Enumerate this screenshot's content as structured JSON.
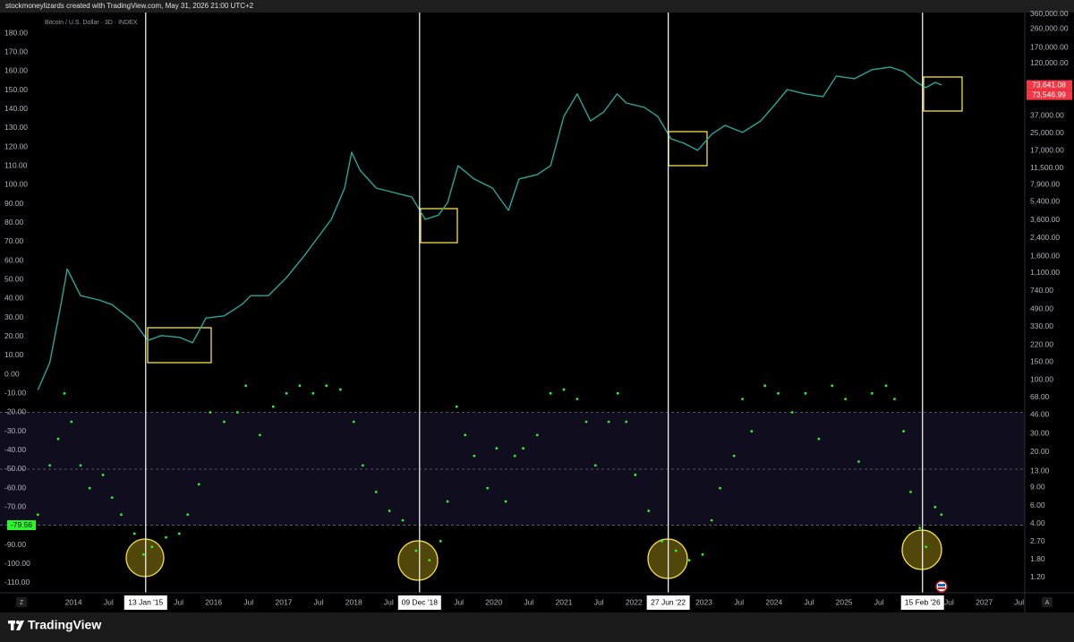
{
  "header": {
    "attribution": "stockmoneylizards created with TradingView.com, May 31, 2026 21:00 UTC+2"
  },
  "footer": {
    "brand": "TradingView"
  },
  "ui": {
    "scale_left": "Z",
    "scale_right": "A"
  },
  "chart_data": {
    "type": "line",
    "title": "Bitcoin / U.S. Dollar · 3D · INDEX",
    "xlim": [
      2012.95,
      2027.58
    ],
    "xticks": [
      2014,
      {
        "value": 2014.5,
        "label": "Jul"
      },
      {
        "value": 2015.5,
        "label": "Jul"
      },
      2016,
      {
        "value": 2016.5,
        "label": "Jul"
      },
      2017,
      {
        "value": 2017.5,
        "label": "Jul"
      },
      2018,
      {
        "value": 2018.5,
        "label": "Jul"
      },
      {
        "value": 2019.5,
        "label": "Jul"
      },
      2020,
      {
        "value": 2020.5,
        "label": "Jul"
      },
      2021,
      {
        "value": 2021.5,
        "label": "Jul"
      },
      2022,
      2023,
      {
        "value": 2023.5,
        "label": "Jul"
      },
      2024,
      {
        "value": 2024.5,
        "label": "Jul"
      },
      2025,
      {
        "value": 2025.5,
        "label": "Jul"
      },
      {
        "value": 2026.5,
        "label": "Jul"
      },
      2027,
      {
        "value": 2027.5,
        "label": "Jul"
      }
    ],
    "markers": [
      {
        "value": 2015.03,
        "label": "13 Jan '15"
      },
      {
        "value": 2018.94,
        "label": "09 Dec '18"
      },
      {
        "value": 2022.49,
        "label": "27 Jun '22"
      },
      {
        "value": 2026.12,
        "label": "15 Feb '26"
      }
    ],
    "ylim": [
      -115.2,
      192.8
    ],
    "yticks": [
      {
        "value": 180,
        "label": "180.00"
      },
      {
        "value": 170,
        "label": "170.00"
      },
      {
        "value": 160,
        "label": "160.00"
      },
      {
        "value": 150,
        "label": "150.00"
      },
      {
        "value": 140,
        "label": "140.00"
      },
      {
        "value": 130,
        "label": "130.00"
      },
      {
        "value": 120,
        "label": "120.00"
      },
      {
        "value": 110,
        "label": "110.00"
      },
      {
        "value": 100,
        "label": "100.00"
      },
      {
        "value": 90,
        "label": "90.00"
      },
      {
        "value": 80,
        "label": "80.00"
      },
      {
        "value": 70,
        "label": "70.00"
      },
      {
        "value": 60,
        "label": "60.00"
      },
      {
        "value": 50,
        "label": "50.00"
      },
      {
        "value": 40,
        "label": "40.00"
      },
      {
        "value": 30,
        "label": "30.00"
      },
      {
        "value": 20,
        "label": "20.00"
      },
      {
        "value": 10,
        "label": "10.00"
      },
      {
        "value": 0,
        "label": "0.00"
      },
      {
        "value": -10,
        "label": "-10.00"
      },
      {
        "value": -20,
        "label": "-20.00"
      },
      {
        "value": -30,
        "label": "-30.00"
      },
      {
        "value": -40,
        "label": "-40.00"
      },
      {
        "value": -50,
        "label": "-50.00"
      },
      {
        "value": -60,
        "label": "-60.00"
      },
      {
        "value": -70,
        "label": "-70.00"
      },
      {
        "value": -90,
        "label": "-90.00"
      },
      {
        "value": -100,
        "label": "-100.00"
      },
      {
        "value": -110,
        "label": "-110.00"
      }
    ],
    "y2lim": [
      0.853,
      405000
    ],
    "y2log": true,
    "y2ticks": [
      {
        "value": 360000,
        "label": "360,000.00"
      },
      {
        "value": 260000,
        "label": "260,000.00"
      },
      {
        "value": 170000,
        "label": "170,000.00"
      },
      {
        "value": 120000,
        "label": "120,000.00"
      },
      {
        "value": 37000,
        "label": "37,000.00"
      },
      {
        "value": 25000,
        "label": "25,000.00"
      },
      {
        "value": 17000,
        "label": "17,000.00"
      },
      {
        "value": 11500,
        "label": "11,500.00"
      },
      {
        "value": 7900,
        "label": "7,900.00"
      },
      {
        "value": 5400,
        "label": "5,400.00"
      },
      {
        "value": 3600,
        "label": "3,600.00"
      },
      {
        "value": 2400,
        "label": "2,400.00"
      },
      {
        "value": 1600,
        "label": "1,600.00"
      },
      {
        "value": 1100,
        "label": "1,100.00"
      },
      {
        "value": 740,
        "label": "740.00"
      },
      {
        "value": 490,
        "label": "490.00"
      },
      {
        "value": 330,
        "label": "330.00"
      },
      {
        "value": 220,
        "label": "220.00"
      },
      {
        "value": 150,
        "label": "150.00"
      },
      {
        "value": 100,
        "label": "100.00"
      },
      {
        "value": 68,
        "label": "68.00"
      },
      {
        "value": 46,
        "label": "46.00"
      },
      {
        "value": 30,
        "label": "30.00"
      },
      {
        "value": 20,
        "label": "20.00"
      },
      {
        "value": 13,
        "label": "13.00"
      },
      {
        "value": 9,
        "label": "9.00"
      },
      {
        "value": 6,
        "label": "6.00"
      },
      {
        "value": 4,
        "label": "4.00"
      },
      {
        "value": 2.7,
        "label": "2.70"
      },
      {
        "value": 1.8,
        "label": "1.80"
      },
      {
        "value": 1.2,
        "label": "1.20"
      }
    ],
    "levels": [
      -20,
      -50,
      {
        "value": -79.56,
        "label": "-79.56"
      }
    ],
    "band_color": "#100d1f",
    "series": [
      {
        "type": "line",
        "axis": "y2",
        "color": "#26a69a",
        "x": [
          2013.49,
          2013.66,
          2013.82,
          2013.91,
          2014.1,
          2014.36,
          2014.55,
          2014.87,
          2015.06,
          2015.25,
          2015.51,
          2015.7,
          2015.89,
          2016.15,
          2016.4,
          2016.53,
          2016.78,
          2017.04,
          2017.3,
          2017.49,
          2017.68,
          2017.87,
          2017.97,
          2018.09,
          2018.32,
          2018.57,
          2018.83,
          2019.02,
          2019.21,
          2019.34,
          2019.49,
          2019.72,
          2019.98,
          2020.21,
          2020.36,
          2020.62,
          2020.81,
          2021.0,
          2021.19,
          2021.38,
          2021.57,
          2021.76,
          2021.89,
          2022.15,
          2022.34,
          2022.53,
          2022.72,
          2022.91,
          2023.11,
          2023.3,
          2023.55,
          2023.81,
          2024.0,
          2024.19,
          2024.45,
          2024.7,
          2024.89,
          2025.15,
          2025.4,
          2025.66,
          2025.85,
          2026.04,
          2026.17,
          2026.3,
          2026.39
        ],
        "values": [
          80,
          147,
          540,
          1200,
          660,
          600,
          540,
          362,
          242,
          270,
          260,
          230,
          400,
          420,
          540,
          660,
          660,
          990,
          1630,
          2440,
          3640,
          7350,
          16400,
          10960,
          7350,
          6650,
          6000,
          3640,
          4000,
          5300,
          12100,
          9000,
          7350,
          4450,
          9000,
          9940,
          12100,
          36500,
          60400,
          33000,
          40400,
          60400,
          49400,
          44700,
          36500,
          22100,
          20000,
          17100,
          24500,
          29900,
          25500,
          33000,
          46500,
          66700,
          60400,
          56900,
          90200,
          84900,
          104000,
          110000,
          99800,
          78300,
          69500,
          78300,
          74000
        ],
        "last_values": [
          {
            "value": 73641.08,
            "label": "73,641.08"
          },
          {
            "value": 73546.99,
            "label": "73,546.99"
          }
        ],
        "label_color": "#f23645"
      },
      {
        "type": "scatter",
        "color": "#2bf52b",
        "x": [
          2013.49,
          2013.66,
          2013.78,
          2013.87,
          2013.97,
          2014.1,
          2014.23,
          2014.42,
          2014.55,
          2014.68,
          2014.87,
          2015.0,
          2015.12,
          2015.32,
          2015.51,
          2015.63,
          2015.79,
          2015.95,
          2016.15,
          2016.34,
          2016.46,
          2016.66,
          2016.85,
          2017.04,
          2017.23,
          2017.42,
          2017.61,
          2017.81,
          2018.0,
          2018.13,
          2018.32,
          2018.51,
          2018.7,
          2018.89,
          2019.08,
          2019.24,
          2019.34,
          2019.47,
          2019.59,
          2019.72,
          2019.91,
          2020.04,
          2020.17,
          2020.3,
          2020.42,
          2020.62,
          2020.81,
          2021.0,
          2021.19,
          2021.32,
          2021.45,
          2021.64,
          2021.77,
          2021.89,
          2022.02,
          2022.21,
          2022.4,
          2022.6,
          2022.79,
          2022.98,
          2023.11,
          2023.23,
          2023.43,
          2023.55,
          2023.68,
          2023.87,
          2024.06,
          2024.26,
          2024.45,
          2024.64,
          2024.83,
          2025.02,
          2025.21,
          2025.4,
          2025.6,
          2025.72,
          2025.85,
          2025.95,
          2026.08,
          2026.17,
          2026.3,
          2026.39
        ],
        "values": [
          -74,
          -48,
          -34,
          -10,
          -25,
          -48,
          -60,
          -53,
          -65,
          -74,
          -84,
          -95,
          -91,
          -86,
          -84,
          -74,
          -58,
          -20,
          -25,
          -20,
          -6,
          -32,
          -17,
          -10,
          -6,
          -10,
          -6,
          -8,
          -25,
          -48,
          -62,
          -72,
          -77,
          -93,
          -98,
          -88,
          -67,
          -17,
          -32,
          -43,
          -60,
          -39,
          -67,
          -43,
          -39,
          -32,
          -10,
          -8,
          -13,
          -25,
          -48,
          -25,
          -10,
          -25,
          -53,
          -72,
          -88,
          -93,
          -98,
          -95,
          -77,
          -60,
          -43,
          -13,
          -30,
          -6,
          -10,
          -20,
          -10,
          -34,
          -6,
          -13,
          -46,
          -10,
          -6,
          -13,
          -30,
          -62,
          -81,
          -91,
          -70,
          -74
        ]
      }
    ]
  }
}
